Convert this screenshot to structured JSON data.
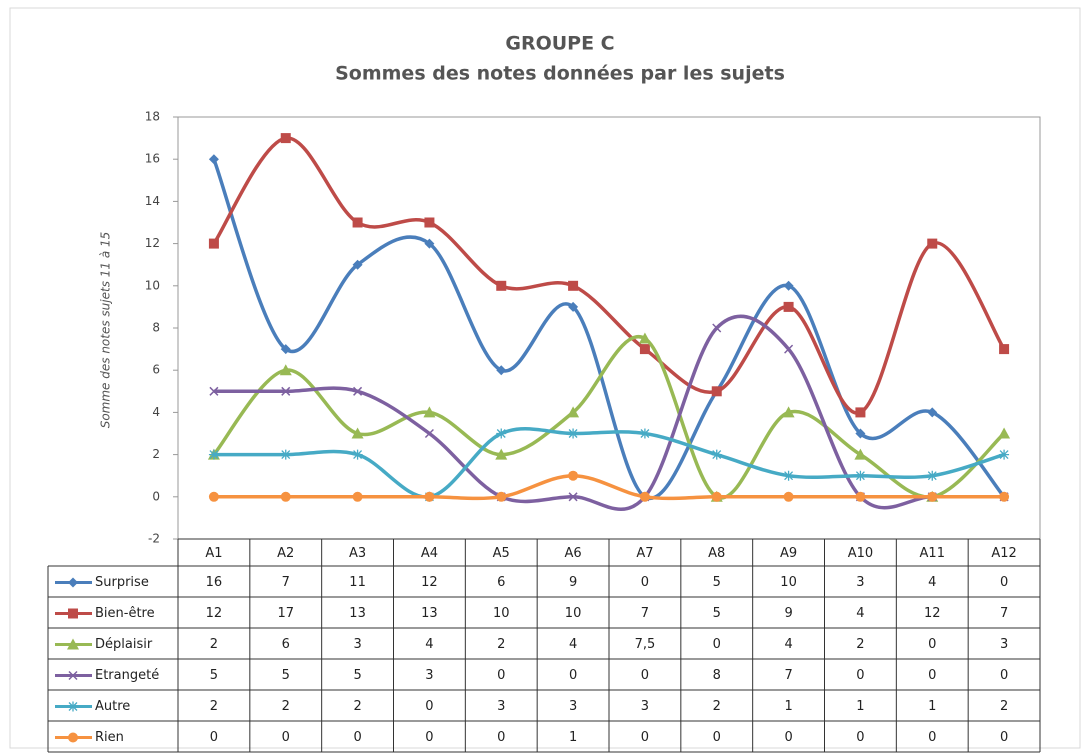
{
  "chart_data": {
    "type": "line",
    "title": "GROUPE C",
    "subtitle": "Sommes des notes données par les sujets",
    "y_label": "Somme des notes sujets 11 à 15",
    "categories": [
      "A1",
      "A2",
      "A3",
      "A4",
      "A5",
      "A6",
      "A7",
      "A8",
      "A9",
      "A10",
      "A11",
      "A12"
    ],
    "series": [
      {
        "name": "Surprise",
        "color": "#4a7ebb",
        "marker": "diamond",
        "values": [
          16,
          7,
          11,
          12,
          6,
          9,
          0,
          5,
          10,
          3,
          4,
          0
        ]
      },
      {
        "name": "Bien-être",
        "color": "#be4b48",
        "marker": "square",
        "values": [
          12,
          17,
          13,
          13,
          10,
          10,
          7,
          5,
          9,
          4,
          12,
          7
        ]
      },
      {
        "name": "Déplaisir",
        "color": "#98b954",
        "marker": "triangle",
        "values": [
          2,
          6,
          3,
          4,
          2,
          4,
          7.5,
          0,
          4,
          2,
          0,
          3
        ],
        "value_labels": [
          "2",
          "6",
          "3",
          "4",
          "2",
          "4",
          "7,5",
          "0",
          "4",
          "2",
          "0",
          "3"
        ]
      },
      {
        "name": "Etrangeté",
        "color": "#7d60a0",
        "marker": "x",
        "values": [
          5,
          5,
          5,
          3,
          0,
          0,
          0,
          8,
          7,
          0,
          0,
          0
        ]
      },
      {
        "name": "Autre",
        "color": "#46aac5",
        "marker": "star",
        "values": [
          2,
          2,
          2,
          0,
          3,
          3,
          3,
          2,
          1,
          1,
          1,
          2
        ]
      },
      {
        "name": "Rien",
        "color": "#f69240",
        "marker": "circle",
        "values": [
          0,
          0,
          0,
          0,
          0,
          1,
          0,
          0,
          0,
          0,
          0,
          0
        ]
      }
    ],
    "ylim": [
      -2,
      18
    ],
    "yticks": [
      -2,
      0,
      2,
      4,
      6,
      8,
      10,
      12,
      14,
      16,
      18
    ],
    "smooth": true,
    "legend": "table"
  }
}
